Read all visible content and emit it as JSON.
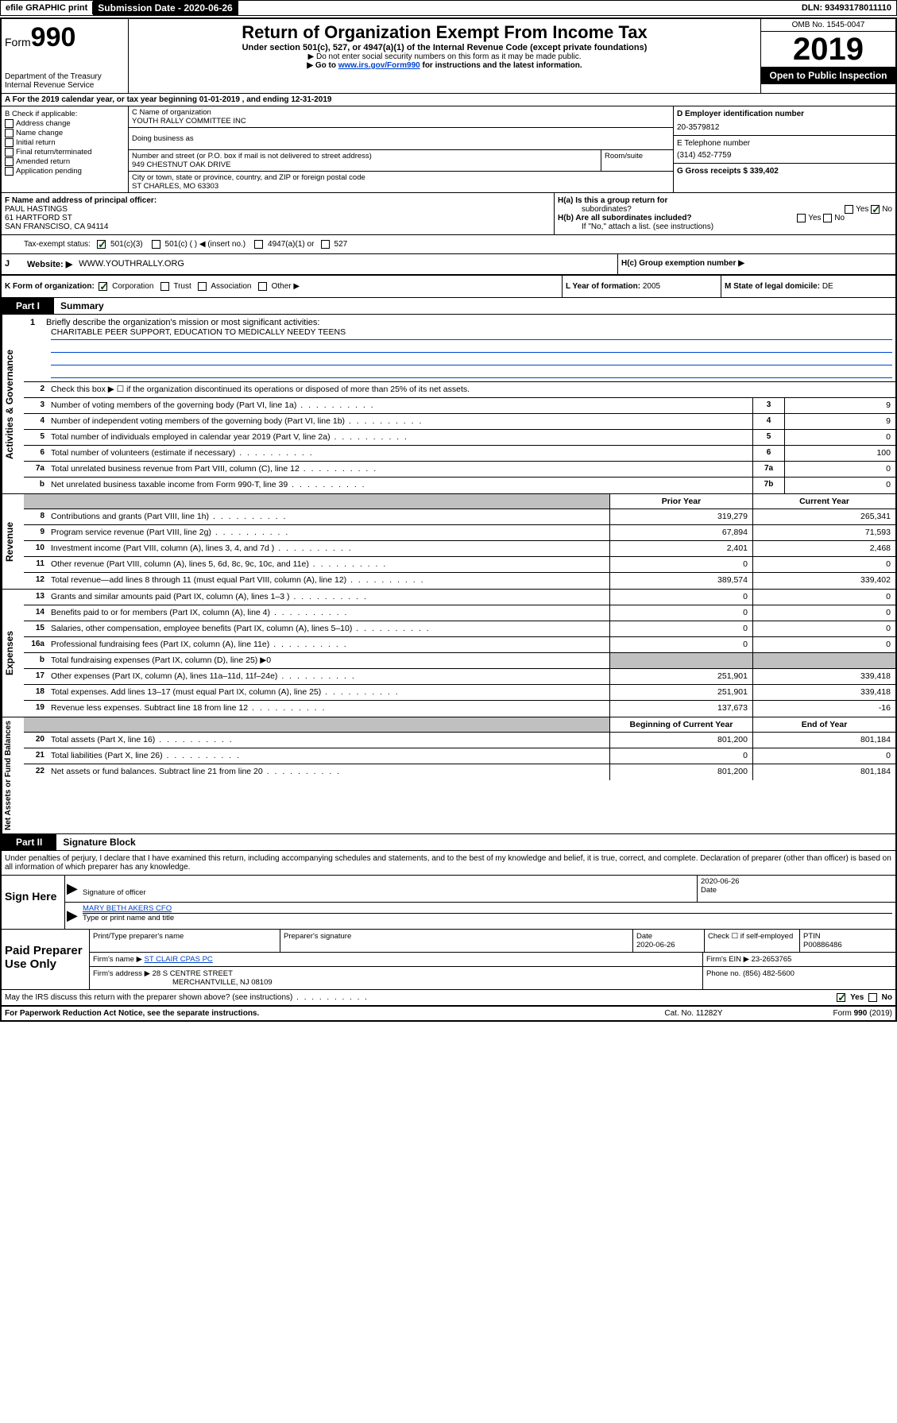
{
  "topbar": {
    "efile": "efile GRAPHIC print",
    "subdate_label": "Submission Date - ",
    "subdate": "2020-06-26",
    "dln_label": "DLN: ",
    "dln": "93493178011110"
  },
  "header": {
    "form_prefix": "Form",
    "form_number": "990",
    "dept": "Department of the Treasury",
    "irs": "Internal Revenue Service",
    "title": "Return of Organization Exempt From Income Tax",
    "subtitle": "Under section 501(c), 527, or 4947(a)(1) of the Internal Revenue Code (except private foundations)",
    "note1": "▶ Do not enter social security numbers on this form as it may be made public.",
    "note2_pre": "▶ Go to ",
    "note2_link": "www.irs.gov/Form990",
    "note2_post": " for instructions and the latest information.",
    "omb": "OMB No. 1545-0047",
    "year": "2019",
    "open": "Open to Public Inspection"
  },
  "row_a": "A For the 2019 calendar year, or tax year beginning 01-01-2019     , and ending 12-31-2019",
  "col_b": {
    "header": "B Check if applicable:",
    "opts": [
      "Address change",
      "Name change",
      "Initial return",
      "Final return/terminated",
      "Amended return",
      "Application pending"
    ]
  },
  "col_c": {
    "name_label": "C Name of organization",
    "name": "YOUTH RALLY COMMITTEE INC",
    "dba_label": "Doing business as",
    "street_label": "Number and street (or P.O. box if mail is not delivered to street address)",
    "street": "949 CHESTNUT OAK DRIVE",
    "suite_label": "Room/suite",
    "city_label": "City or town, state or province, country, and ZIP or foreign postal code",
    "city": "ST CHARLES, MO  63303"
  },
  "col_de": {
    "d_label": "D Employer identification number",
    "d_val": "20-3579812",
    "e_label": "E Telephone number",
    "e_val": "(314) 452-7759",
    "g_label": "G Gross receipts $ ",
    "g_val": "339,402"
  },
  "col_f": {
    "label": "F  Name and address of principal officer:",
    "name": "PAUL HASTINGS",
    "addr1": "61 HARTFORD ST",
    "addr2": "SAN FRANSCISO, CA  94114"
  },
  "col_h": {
    "ha_label": "H(a)  Is this a group return for",
    "ha_sub": "subordinates?",
    "hb_label": "H(b)  Are all subordinates included?",
    "hb_note": "If \"No,\" attach a list. (see instructions)",
    "yes": "Yes",
    "no": "No"
  },
  "row_tax": {
    "label": "Tax-exempt status:",
    "o1": "501(c)(3)",
    "o2": "501(c) (  ) ◀ (insert no.)",
    "o3": "4947(a)(1) or",
    "o4": "527"
  },
  "row_web": {
    "j": "J",
    "label": "Website: ▶",
    "val": "WWW.YOUTHRALLY.ORG",
    "hc_label": "H(c)  Group exemption number ▶"
  },
  "row_k": {
    "k": "K Form of organization:",
    "opts": [
      "Corporation",
      "Trust",
      "Association",
      "Other ▶"
    ],
    "l": "L Year of formation: ",
    "l_val": "2005",
    "m": "M State of legal domicile: ",
    "m_val": "DE"
  },
  "part1": {
    "label": "Part I",
    "title": "Summary"
  },
  "side_labels": {
    "gov": "Activities & Governance",
    "rev": "Revenue",
    "exp": "Expenses",
    "net": "Net Assets or Fund Balances"
  },
  "mission": {
    "num": "1",
    "label": "Briefly describe the organization's mission or most significant activities:",
    "text": "CHARITABLE PEER SUPPORT, EDUCATION TO MEDICALLY NEEDY TEENS"
  },
  "gov_lines": [
    {
      "num": "2",
      "desc": "Check this box ▶ ☐  if the organization discontinued its operations or disposed of more than 25% of its net assets."
    },
    {
      "num": "3",
      "desc": "Number of voting members of the governing body (Part VI, line 1a)",
      "box": "3",
      "val": "9"
    },
    {
      "num": "4",
      "desc": "Number of independent voting members of the governing body (Part VI, line 1b)",
      "box": "4",
      "val": "9"
    },
    {
      "num": "5",
      "desc": "Total number of individuals employed in calendar year 2019 (Part V, line 2a)",
      "box": "5",
      "val": "0"
    },
    {
      "num": "6",
      "desc": "Total number of volunteers (estimate if necessary)",
      "box": "6",
      "val": "100"
    },
    {
      "num": "7a",
      "desc": "Total unrelated business revenue from Part VIII, column (C), line 12",
      "box": "7a",
      "val": "0"
    },
    {
      "num": "b",
      "desc": "Net unrelated business taxable income from Form 990-T, line 39",
      "box": "7b",
      "val": "0"
    }
  ],
  "col_headers": {
    "prior": "Prior Year",
    "current": "Current Year",
    "begin": "Beginning of Current Year",
    "end": "End of Year"
  },
  "rev_lines": [
    {
      "num": "8",
      "desc": "Contributions and grants (Part VIII, line 1h)",
      "p": "319,279",
      "c": "265,341"
    },
    {
      "num": "9",
      "desc": "Program service revenue (Part VIII, line 2g)",
      "p": "67,894",
      "c": "71,593"
    },
    {
      "num": "10",
      "desc": "Investment income (Part VIII, column (A), lines 3, 4, and 7d )",
      "p": "2,401",
      "c": "2,468"
    },
    {
      "num": "11",
      "desc": "Other revenue (Part VIII, column (A), lines 5, 6d, 8c, 9c, 10c, and 11e)",
      "p": "0",
      "c": "0"
    },
    {
      "num": "12",
      "desc": "Total revenue—add lines 8 through 11 (must equal Part VIII, column (A), line 12)",
      "p": "389,574",
      "c": "339,402"
    }
  ],
  "exp_lines": [
    {
      "num": "13",
      "desc": "Grants and similar amounts paid (Part IX, column (A), lines 1–3 )",
      "p": "0",
      "c": "0"
    },
    {
      "num": "14",
      "desc": "Benefits paid to or for members (Part IX, column (A), line 4)",
      "p": "0",
      "c": "0"
    },
    {
      "num": "15",
      "desc": "Salaries, other compensation, employee benefits (Part IX, column (A), lines 5–10)",
      "p": "0",
      "c": "0"
    },
    {
      "num": "16a",
      "desc": "Professional fundraising fees (Part IX, column (A), line 11e)",
      "p": "0",
      "c": "0"
    },
    {
      "num": "b",
      "desc": "Total fundraising expenses (Part IX, column (D), line 25) ▶0",
      "p": "",
      "c": "",
      "grey": true
    },
    {
      "num": "17",
      "desc": "Other expenses (Part IX, column (A), lines 11a–11d, 11f–24e)",
      "p": "251,901",
      "c": "339,418"
    },
    {
      "num": "18",
      "desc": "Total expenses. Add lines 13–17 (must equal Part IX, column (A), line 25)",
      "p": "251,901",
      "c": "339,418"
    },
    {
      "num": "19",
      "desc": "Revenue less expenses. Subtract line 18 from line 12",
      "p": "137,673",
      "c": "-16"
    }
  ],
  "net_lines": [
    {
      "num": "20",
      "desc": "Total assets (Part X, line 16)",
      "p": "801,200",
      "c": "801,184"
    },
    {
      "num": "21",
      "desc": "Total liabilities (Part X, line 26)",
      "p": "0",
      "c": "0"
    },
    {
      "num": "22",
      "desc": "Net assets or fund balances. Subtract line 21 from line 20",
      "p": "801,200",
      "c": "801,184"
    }
  ],
  "part2": {
    "label": "Part II",
    "title": "Signature Block"
  },
  "sig": {
    "decl": "Under penalties of perjury, I declare that I have examined this return, including accompanying schedules and statements, and to the best of my knowledge and belief, it is true, correct, and complete. Declaration of preparer (other than officer) is based on all information of which preparer has any knowledge.",
    "sign_here": "Sign Here",
    "sig_label": "Signature of officer",
    "sig_date": "2020-06-26",
    "date_label": "Date",
    "name": "MARY BETH AKERS CFO",
    "name_label": "Type or print name and title"
  },
  "paid": {
    "label": "Paid Preparer Use Only",
    "h1": "Print/Type preparer's name",
    "h2": "Preparer's signature",
    "h3": "Date",
    "h3v": "2020-06-26",
    "h4": "Check ☐ if self-employed",
    "h5": "PTIN",
    "h5v": "P00886486",
    "firm_label": "Firm's name    ▶ ",
    "firm": "ST CLAIR CPAS PC",
    "ein_label": "Firm's EIN ▶ ",
    "ein": "23-2653765",
    "addr_label": "Firm's address ▶ ",
    "addr1": "28 S CENTRE STREET",
    "addr2": "MERCHANTVILLE, NJ  08109",
    "phone_label": "Phone no. ",
    "phone": "(856) 482-5600"
  },
  "bottom": {
    "q": "May the IRS discuss this return with the preparer shown above? (see instructions)",
    "yes": "Yes",
    "no": "No"
  },
  "footer": {
    "left": "For Paperwork Reduction Act Notice, see the separate instructions.",
    "mid": "Cat. No. 11282Y",
    "right_pre": "Form ",
    "right_bold": "990",
    "right_post": " (2019)"
  }
}
